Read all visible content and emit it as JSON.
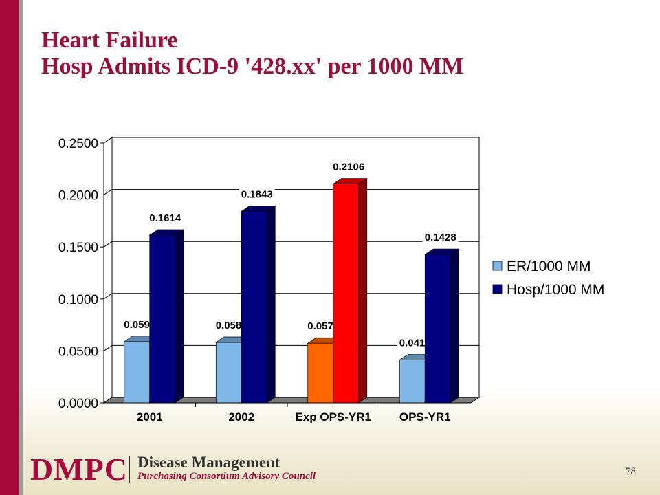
{
  "slide": {
    "title_line1": "Heart Failure",
    "title_line2": "Hosp Admits ICD-9 '428.xx' per 1000 MM",
    "page_number": "78"
  },
  "footer": {
    "logo_text": "DMPC",
    "org_line1": "Disease Management",
    "org_line2": "Purchasing Consortium Advisory Council"
  },
  "colors": {
    "title": "#9a0f3a",
    "accent_bar": "#a8093d",
    "er": "#7fb8e8",
    "hosp": "#000080",
    "exp_er": "#ff6600",
    "exp_hosp": "#ff0000"
  },
  "chart_data": {
    "type": "bar",
    "style": "3d-clustered",
    "categories": [
      "2001",
      "2002",
      "Exp OPS-YR1",
      "OPS-YR1"
    ],
    "series": [
      {
        "name": "ER/1000 MM",
        "values": [
          0.059,
          0.0582,
          0.0574,
          0.0413
        ],
        "labels": [
          "0.0590",
          "0.0582",
          "0.0574",
          "0.0413"
        ]
      },
      {
        "name": "Hosp/1000 MM",
        "values": [
          0.1614,
          0.1843,
          0.2106,
          0.1428
        ],
        "labels": [
          "0.1614",
          "0.1843",
          "0.2106",
          "0.1428"
        ]
      }
    ],
    "highlight_category": "Exp OPS-YR1",
    "ylim": [
      0,
      0.25
    ],
    "yticks": [
      "0.0000",
      "0.0500",
      "0.1000",
      "0.1500",
      "0.2000",
      "0.2500"
    ],
    "grid": true,
    "legend_position": "right"
  }
}
